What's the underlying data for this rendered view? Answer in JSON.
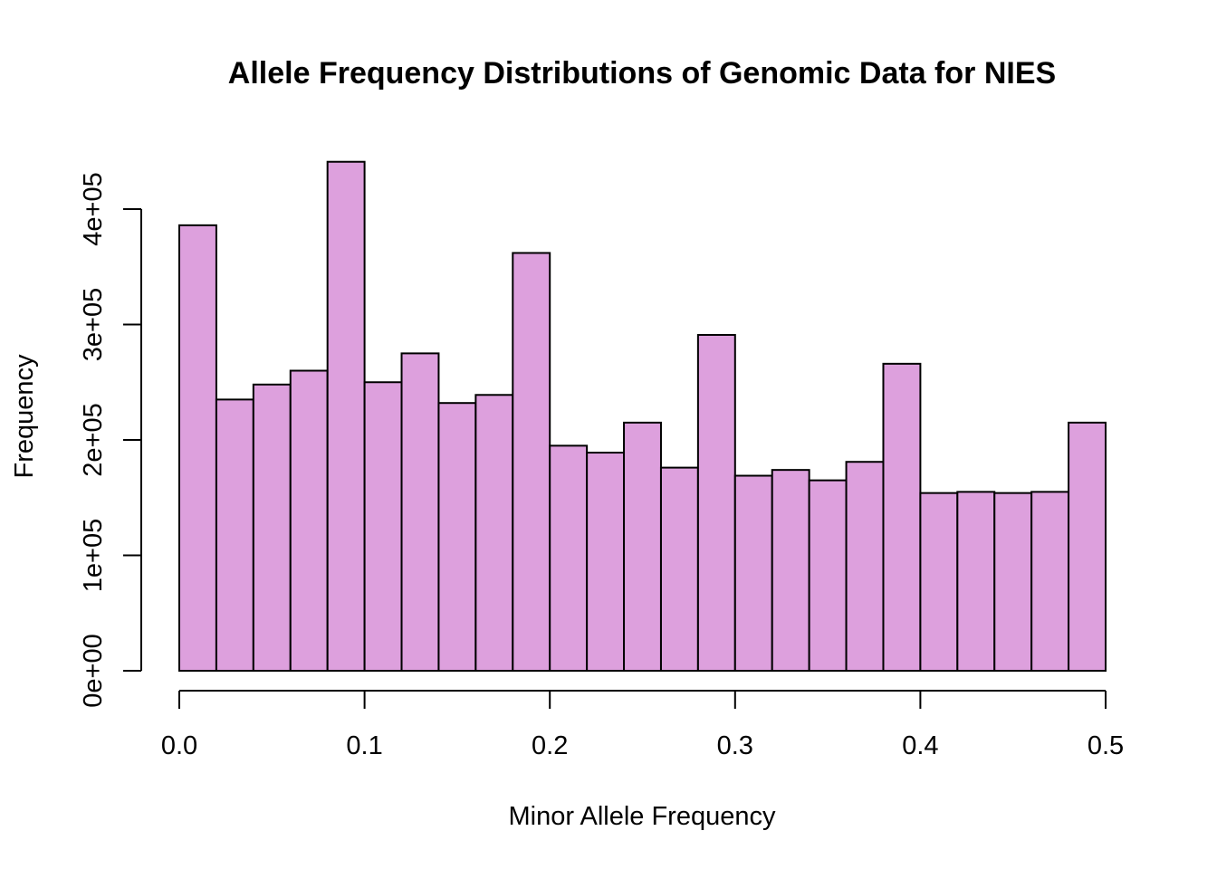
{
  "chart_data": {
    "type": "bar",
    "title": "Allele Frequency Distributions of Genomic Data for NIES",
    "xlabel": "Minor Allele Frequency",
    "ylabel": "Frequency",
    "bin_width": 0.02,
    "bin_edges": [
      0.0,
      0.02,
      0.04,
      0.06,
      0.08,
      0.1,
      0.12,
      0.14,
      0.16,
      0.18,
      0.2,
      0.22,
      0.24,
      0.26,
      0.28,
      0.3,
      0.32,
      0.34,
      0.36,
      0.38,
      0.4,
      0.42,
      0.44,
      0.46,
      0.48,
      0.5
    ],
    "values": [
      386000,
      235000,
      248000,
      260000,
      441000,
      250000,
      275000,
      232000,
      239000,
      362000,
      195000,
      189000,
      215000,
      176000,
      291000,
      169000,
      174000,
      165000,
      181000,
      266000,
      154000,
      155000,
      154000,
      155000,
      215000
    ],
    "xlim": [
      0,
      0.5
    ],
    "ylim": [
      0,
      400000
    ],
    "x_ticks": [
      0.0,
      0.1,
      0.2,
      0.3,
      0.4,
      0.5
    ],
    "x_tick_labels": [
      "0.0",
      "0.1",
      "0.2",
      "0.3",
      "0.4",
      "0.5"
    ],
    "y_ticks": [
      0,
      100000,
      200000,
      300000,
      400000
    ],
    "y_tick_labels": [
      "0e+00",
      "1e+05",
      "2e+05",
      "3e+05",
      "4e+05"
    ],
    "bar_color": "#DDA0DD",
    "grid": false,
    "legend": "none"
  }
}
